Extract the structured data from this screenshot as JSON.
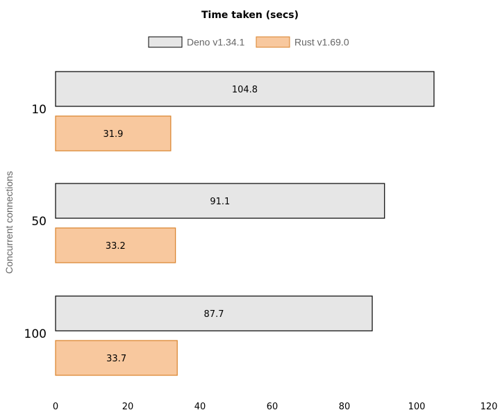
{
  "chart_data": {
    "type": "bar",
    "orientation": "horizontal",
    "title": "Time taken (secs)",
    "ylabel": "Concurrent connections",
    "xlabel": "",
    "categories": [
      "10",
      "50",
      "100"
    ],
    "series": [
      {
        "name": "Deno v1.34.1",
        "values": [
          104.8,
          91.1,
          87.7
        ],
        "color": "#e6e6e6",
        "stroke": "#000000"
      },
      {
        "name": "Rust v1.69.0",
        "values": [
          31.9,
          33.2,
          33.7
        ],
        "color": "#f8c89e",
        "stroke": "#d9822b"
      }
    ],
    "xlim": [
      0,
      120
    ],
    "xticks": [
      "0",
      "20",
      "40",
      "60",
      "80",
      "100",
      "120"
    ],
    "legend": "top-center",
    "grid": false,
    "data_labels": true
  }
}
